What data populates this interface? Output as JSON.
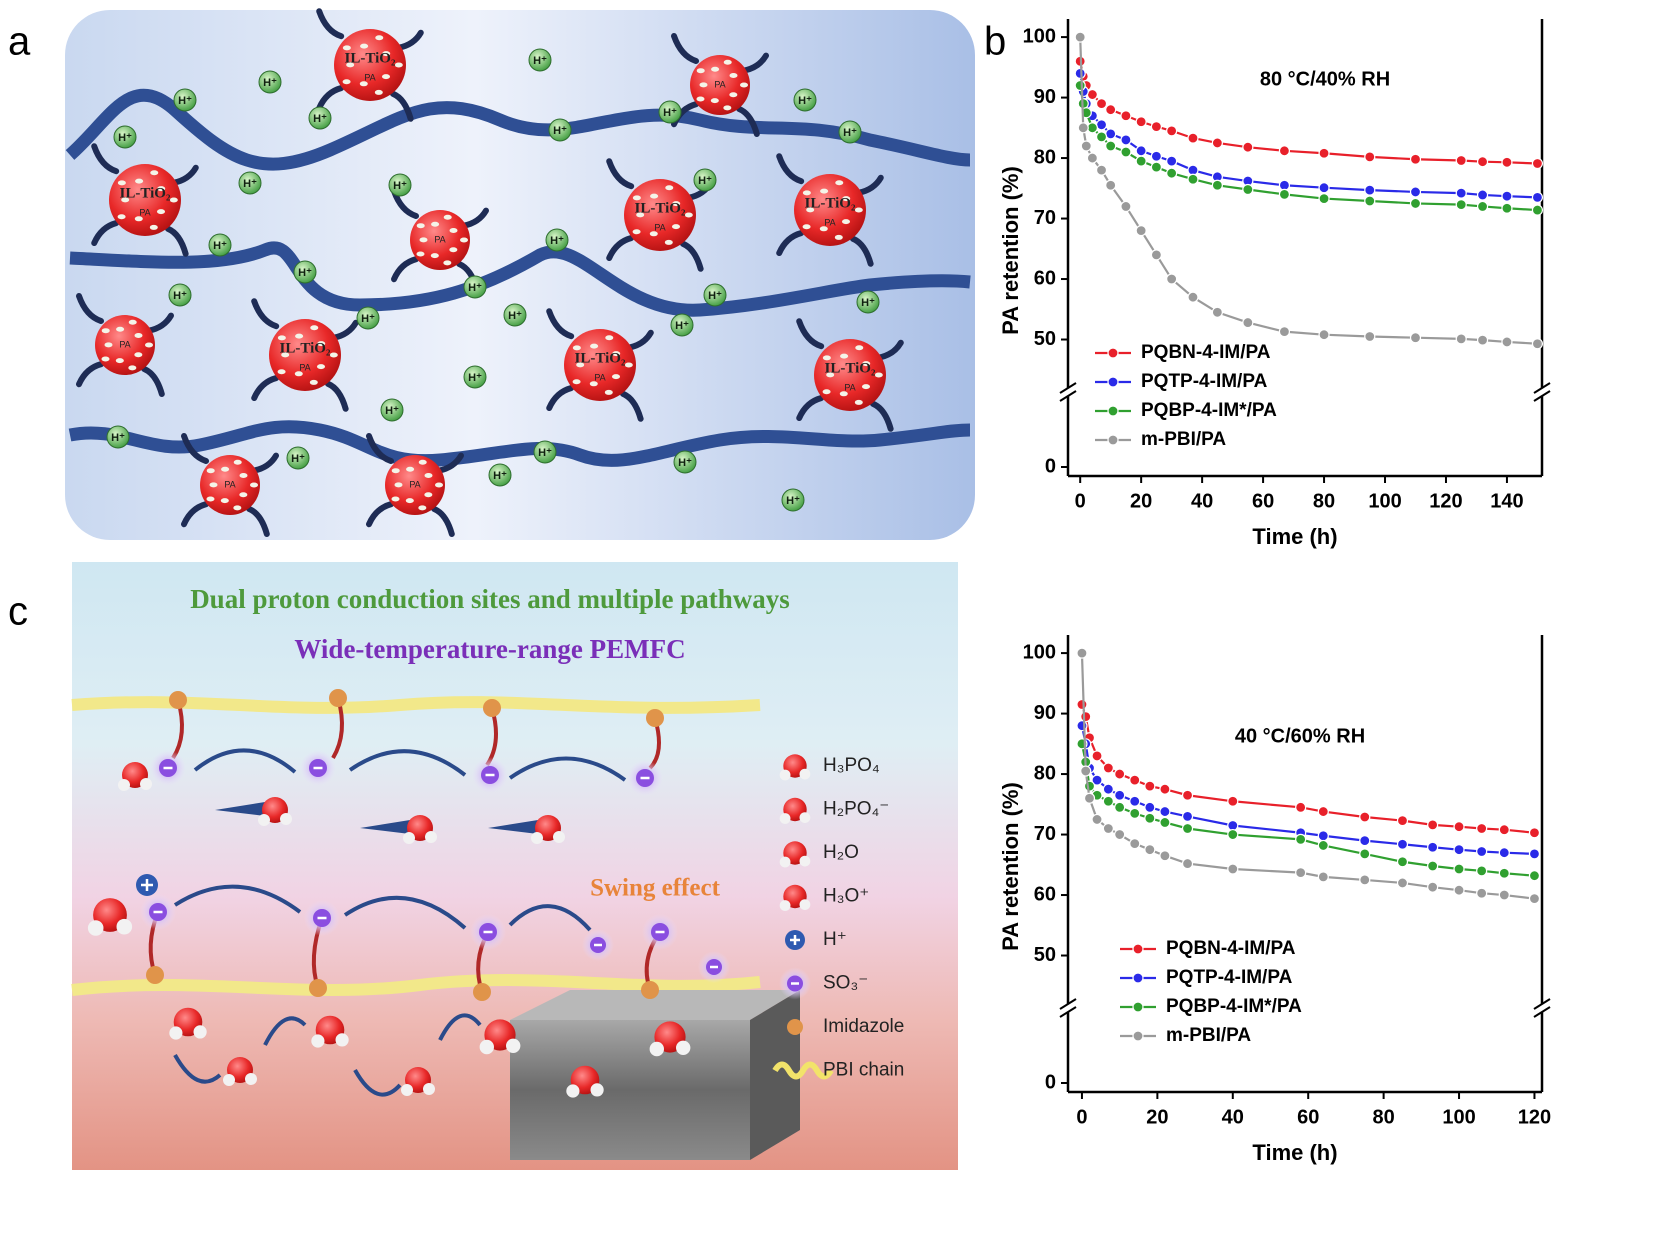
{
  "panel_labels": {
    "a": "a",
    "b": "b",
    "c": "c"
  },
  "panel_a": {
    "particle_main": "IL-TiO₂",
    "particle_pa": "PA",
    "proton": "H⁺"
  },
  "panel_c": {
    "title": "Dual proton conduction sites and multiple pathways",
    "subtitle": "Wide-temperature-range PEMFC",
    "annotation": "Swing effect",
    "legend": [
      "H₃PO₄",
      "H₂PO₄⁻",
      "H₂O",
      "H₃O⁺",
      "H⁺",
      "SO₃⁻",
      "Imidazole",
      "PBI chain"
    ]
  },
  "chart_data": [
    {
      "type": "line",
      "title": "80 °C/40% RH",
      "x_label": "Time (h)",
      "y_label": "PA retention (%)",
      "x": [
        0,
        1,
        2,
        4,
        7,
        10,
        15,
        20,
        25,
        30,
        37,
        45,
        55,
        67,
        80,
        95,
        110,
        125,
        132,
        140,
        150
      ],
      "series": [
        {
          "name": "PQBN-4-IM/PA",
          "color": "#e8202a",
          "values": [
            96,
            93.5,
            92,
            90.5,
            89,
            88,
            87,
            86,
            85.2,
            84.5,
            83.3,
            82.5,
            81.8,
            81.2,
            80.8,
            80.2,
            79.8,
            79.6,
            79.4,
            79.3,
            79.1
          ]
        },
        {
          "name": "PQTP-4-IM/PA",
          "color": "#2a2ae8",
          "values": [
            94,
            91,
            89,
            87,
            85.5,
            84,
            83,
            81.2,
            80.3,
            79.5,
            78,
            76.9,
            76.2,
            75.5,
            75.1,
            74.7,
            74.4,
            74.2,
            73.9,
            73.7,
            73.5
          ]
        },
        {
          "name": "PQBP-4-IM*/PA",
          "color": "#30a030",
          "values": [
            92,
            89,
            87.5,
            85,
            83.5,
            82,
            81,
            79.5,
            78.5,
            77.5,
            76.5,
            75.5,
            74.8,
            74,
            73.3,
            72.9,
            72.5,
            72.3,
            72,
            71.7,
            71.4
          ]
        },
        {
          "name": "m-PBI/PA",
          "color": "#9a9a9a",
          "values": [
            100,
            85,
            82,
            80,
            78,
            75.5,
            72,
            68,
            64,
            60,
            57,
            54.5,
            52.8,
            51.3,
            50.8,
            50.5,
            50.3,
            50.1,
            49.9,
            49.6,
            49.3
          ]
        }
      ],
      "xlim": [
        -4,
        151.5
      ],
      "xticks": [
        0,
        20,
        40,
        60,
        80,
        100,
        120,
        140
      ],
      "ylim": [
        0,
        102
      ],
      "ybreak": [
        5,
        40
      ],
      "yticks": [
        0,
        50,
        60,
        70,
        80,
        90,
        100
      ],
      "legend": "lower left"
    },
    {
      "type": "line",
      "title": "40 °C/60% RH",
      "x_label": "Time (h)",
      "y_label": "PA retention (%)",
      "x": [
        0,
        1,
        2,
        4,
        7,
        10,
        14,
        18,
        22,
        28,
        40,
        58,
        64,
        75,
        85,
        93,
        100,
        106,
        112,
        120
      ],
      "series": [
        {
          "name": "PQBN-4-IM/PA",
          "color": "#e8202a",
          "values": [
            91.5,
            89.5,
            86,
            83,
            81,
            80,
            79,
            78,
            77.5,
            76.5,
            75.5,
            74.5,
            73.8,
            72.9,
            72.3,
            71.6,
            71.3,
            71,
            70.8,
            70.3
          ]
        },
        {
          "name": "PQTP-4-IM/PA",
          "color": "#2a2ae8",
          "values": [
            88,
            85,
            81,
            79,
            77.5,
            76.5,
            75.5,
            74.5,
            73.8,
            73,
            71.5,
            70.3,
            69.8,
            69,
            68.4,
            67.9,
            67.5,
            67.2,
            67,
            66.8
          ]
        },
        {
          "name": "PQBP-4-IM*/PA",
          "color": "#30a030",
          "values": [
            85,
            82,
            78,
            76.5,
            75.5,
            74.5,
            73.5,
            72.7,
            72,
            71,
            70,
            69.2,
            68.2,
            66.8,
            65.5,
            64.8,
            64.3,
            64,
            63.6,
            63.2
          ]
        },
        {
          "name": "m-PBI/PA",
          "color": "#9a9a9a",
          "values": [
            100,
            80.5,
            76,
            72.5,
            71,
            70,
            68.5,
            67.5,
            66.5,
            65.2,
            64.3,
            63.7,
            63,
            62.5,
            62,
            61.3,
            60.8,
            60.3,
            60,
            59.4
          ]
        }
      ],
      "xlim": [
        -3.7,
        122
      ],
      "xticks": [
        0,
        20,
        40,
        60,
        80,
        100,
        120
      ],
      "ylim": [
        0,
        102
      ],
      "ybreak": [
        5,
        40
      ],
      "yticks": [
        0,
        50,
        60,
        70,
        80,
        90,
        100
      ],
      "legend": "lower left"
    }
  ]
}
